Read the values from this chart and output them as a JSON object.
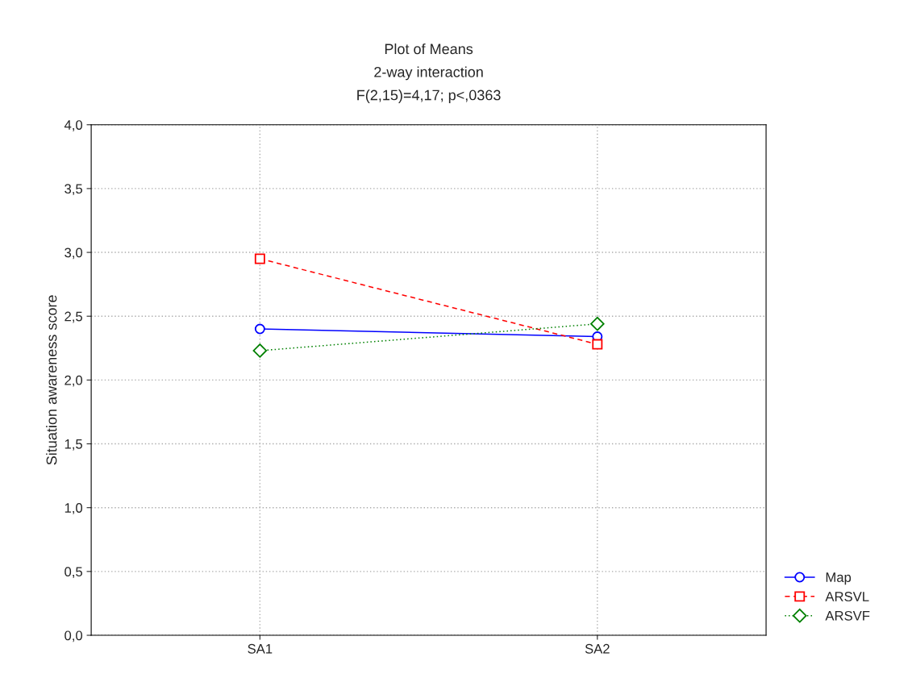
{
  "chart_data": {
    "type": "line",
    "title": "Plot of Means\n2-way interaction\nF(2,15)=4,17; p<,0363",
    "ylabel": "Situation awareness score",
    "categories": [
      "SA1",
      "SA2"
    ],
    "series": [
      {
        "name": "Map",
        "color": "#0000ff",
        "values": [
          2.4,
          2.34
        ],
        "marker": "circle",
        "line_style": "solid"
      },
      {
        "name": "ARSVL",
        "color": "#ff0000",
        "values": [
          2.95,
          2.28
        ],
        "marker": "square",
        "line_style": "dashed"
      },
      {
        "name": "ARSVF",
        "color": "#008000",
        "values": [
          2.23,
          2.44
        ],
        "marker": "diamond",
        "line_style": "dotted"
      }
    ],
    "ylim": [
      0,
      4
    ],
    "yticks": [
      {
        "value": 0,
        "label": "0,0"
      },
      {
        "value": 0.5,
        "label": "0,5"
      },
      {
        "value": 1,
        "label": "1,0"
      },
      {
        "value": 1.5,
        "label": "1,5"
      },
      {
        "value": 2,
        "label": "2,0"
      },
      {
        "value": 2.5,
        "label": "2,5"
      },
      {
        "value": 3,
        "label": "3,0"
      },
      {
        "value": 3.5,
        "label": "3,5"
      },
      {
        "value": 4,
        "label": "4,0"
      }
    ],
    "grid": true,
    "legend": "bottom right"
  }
}
